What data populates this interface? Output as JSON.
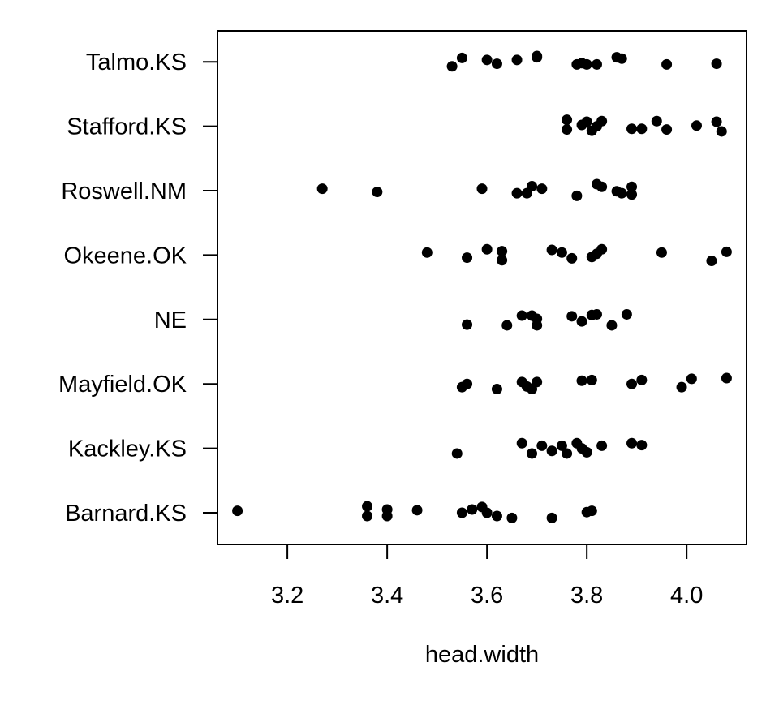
{
  "chart_data": {
    "type": "scatter",
    "xlabel": "head.width",
    "ylabel": "",
    "xlim": [
      3.06,
      4.12
    ],
    "x_ticks": [
      "3.2",
      "3.4",
      "3.6",
      "3.8",
      "4.0"
    ],
    "categories": [
      "Barnard.KS",
      "Kackley.KS",
      "Mayfield.OK",
      "NE",
      "Okeene.OK",
      "Roswell.NM",
      "Stafford.KS",
      "Talmo.KS"
    ],
    "grid": false,
    "point_color": "#000000",
    "series": [
      {
        "category": "Barnard.KS",
        "points": [
          {
            "x": 3.1,
            "j": 0.03
          },
          {
            "x": 3.36,
            "j": 0.1
          },
          {
            "x": 3.36,
            "j": -0.05
          },
          {
            "x": 3.4,
            "j": 0.05
          },
          {
            "x": 3.4,
            "j": -0.05
          },
          {
            "x": 3.46,
            "j": 0.04
          },
          {
            "x": 3.55,
            "j": 0.0
          },
          {
            "x": 3.57,
            "j": 0.05
          },
          {
            "x": 3.59,
            "j": 0.09
          },
          {
            "x": 3.6,
            "j": 0.0
          },
          {
            "x": 3.62,
            "j": -0.05
          },
          {
            "x": 3.65,
            "j": -0.08
          },
          {
            "x": 3.73,
            "j": -0.08
          },
          {
            "x": 3.8,
            "j": 0.01
          },
          {
            "x": 3.81,
            "j": 0.03
          }
        ]
      },
      {
        "category": "Kackley.KS",
        "points": [
          {
            "x": 3.54,
            "j": -0.08
          },
          {
            "x": 3.67,
            "j": 0.08
          },
          {
            "x": 3.69,
            "j": -0.08
          },
          {
            "x": 3.71,
            "j": 0.04
          },
          {
            "x": 3.73,
            "j": -0.04
          },
          {
            "x": 3.75,
            "j": 0.04
          },
          {
            "x": 3.76,
            "j": -0.08
          },
          {
            "x": 3.78,
            "j": 0.08
          },
          {
            "x": 3.79,
            "j": 0.0
          },
          {
            "x": 3.8,
            "j": -0.06
          },
          {
            "x": 3.83,
            "j": 0.04
          },
          {
            "x": 3.89,
            "j": 0.08
          },
          {
            "x": 3.91,
            "j": 0.05
          }
        ]
      },
      {
        "category": "Mayfield.OK",
        "points": [
          {
            "x": 3.55,
            "j": -0.05
          },
          {
            "x": 3.56,
            "j": 0.0
          },
          {
            "x": 3.62,
            "j": -0.08
          },
          {
            "x": 3.67,
            "j": 0.03
          },
          {
            "x": 3.68,
            "j": -0.04
          },
          {
            "x": 3.69,
            "j": -0.08
          },
          {
            "x": 3.7,
            "j": 0.03
          },
          {
            "x": 3.79,
            "j": 0.05
          },
          {
            "x": 3.81,
            "j": 0.06
          },
          {
            "x": 3.89,
            "j": 0.0
          },
          {
            "x": 3.91,
            "j": 0.06
          },
          {
            "x": 3.99,
            "j": -0.05
          },
          {
            "x": 4.01,
            "j": 0.08
          },
          {
            "x": 4.08,
            "j": 0.09
          }
        ]
      },
      {
        "category": "NE",
        "points": [
          {
            "x": 3.56,
            "j": -0.08
          },
          {
            "x": 3.64,
            "j": -0.09
          },
          {
            "x": 3.67,
            "j": 0.06
          },
          {
            "x": 3.69,
            "j": 0.06
          },
          {
            "x": 3.7,
            "j": -0.09
          },
          {
            "x": 3.7,
            "j": 0.01
          },
          {
            "x": 3.77,
            "j": 0.05
          },
          {
            "x": 3.79,
            "j": -0.03
          },
          {
            "x": 3.81,
            "j": 0.07
          },
          {
            "x": 3.82,
            "j": 0.08
          },
          {
            "x": 3.85,
            "j": -0.09
          },
          {
            "x": 3.88,
            "j": 0.08
          }
        ]
      },
      {
        "category": "Okeene.OK",
        "points": [
          {
            "x": 3.48,
            "j": 0.04
          },
          {
            "x": 3.56,
            "j": -0.04
          },
          {
            "x": 3.6,
            "j": 0.09
          },
          {
            "x": 3.63,
            "j": 0.06
          },
          {
            "x": 3.63,
            "j": -0.08
          },
          {
            "x": 3.73,
            "j": 0.08
          },
          {
            "x": 3.75,
            "j": 0.04
          },
          {
            "x": 3.77,
            "j": -0.05
          },
          {
            "x": 3.81,
            "j": -0.03
          },
          {
            "x": 3.82,
            "j": 0.02
          },
          {
            "x": 3.83,
            "j": 0.09
          },
          {
            "x": 3.95,
            "j": 0.04
          },
          {
            "x": 4.05,
            "j": -0.09
          },
          {
            "x": 4.08,
            "j": 0.05
          }
        ]
      },
      {
        "category": "Roswell.NM",
        "points": [
          {
            "x": 3.27,
            "j": 0.03
          },
          {
            "x": 3.38,
            "j": -0.02
          },
          {
            "x": 3.59,
            "j": 0.03
          },
          {
            "x": 3.66,
            "j": -0.04
          },
          {
            "x": 3.68,
            "j": -0.04
          },
          {
            "x": 3.69,
            "j": 0.07
          },
          {
            "x": 3.71,
            "j": 0.03
          },
          {
            "x": 3.78,
            "j": -0.08
          },
          {
            "x": 3.82,
            "j": 0.1
          },
          {
            "x": 3.83,
            "j": 0.06
          },
          {
            "x": 3.86,
            "j": -0.01
          },
          {
            "x": 3.87,
            "j": -0.04
          },
          {
            "x": 3.89,
            "j": 0.06
          },
          {
            "x": 3.89,
            "j": -0.06
          }
        ]
      },
      {
        "category": "Stafford.KS",
        "points": [
          {
            "x": 3.76,
            "j": 0.1
          },
          {
            "x": 3.76,
            "j": -0.05
          },
          {
            "x": 3.79,
            "j": 0.02
          },
          {
            "x": 3.8,
            "j": 0.07
          },
          {
            "x": 3.81,
            "j": -0.07
          },
          {
            "x": 3.82,
            "j": 0.0
          },
          {
            "x": 3.83,
            "j": 0.08
          },
          {
            "x": 3.89,
            "j": -0.04
          },
          {
            "x": 3.91,
            "j": -0.04
          },
          {
            "x": 3.94,
            "j": 0.08
          },
          {
            "x": 3.96,
            "j": -0.05
          },
          {
            "x": 4.02,
            "j": 0.01
          },
          {
            "x": 4.06,
            "j": 0.07
          },
          {
            "x": 4.07,
            "j": -0.08
          }
        ]
      },
      {
        "category": "Talmo.KS",
        "points": [
          {
            "x": 3.53,
            "j": -0.07
          },
          {
            "x": 3.55,
            "j": 0.06
          },
          {
            "x": 3.6,
            "j": 0.03
          },
          {
            "x": 3.62,
            "j": -0.03
          },
          {
            "x": 3.66,
            "j": 0.03
          },
          {
            "x": 3.7,
            "j": 0.07
          },
          {
            "x": 3.7,
            "j": 0.09
          },
          {
            "x": 3.78,
            "j": -0.04
          },
          {
            "x": 3.79,
            "j": -0.02
          },
          {
            "x": 3.8,
            "j": -0.04
          },
          {
            "x": 3.82,
            "j": -0.04
          },
          {
            "x": 3.86,
            "j": 0.07
          },
          {
            "x": 3.87,
            "j": 0.05
          },
          {
            "x": 3.96,
            "j": -0.04
          },
          {
            "x": 4.06,
            "j": -0.03
          }
        ]
      }
    ]
  }
}
